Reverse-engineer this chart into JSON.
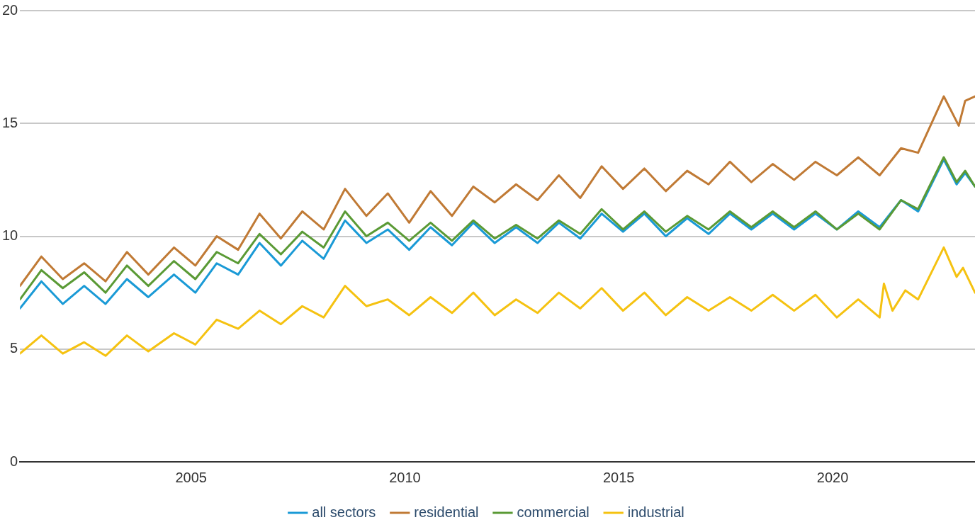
{
  "chart_data": {
    "type": "line",
    "xlim": [
      2001,
      2023.33
    ],
    "xticks": [
      2005,
      2010,
      2015,
      2020
    ],
    "ylim": [
      0,
      20
    ],
    "yticks": [
      0,
      5,
      10,
      15,
      20
    ],
    "grid": "y",
    "legend": "bottom",
    "marker": "none",
    "line_style": "solid",
    "series": [
      {
        "name": "all sectors",
        "color": "#1a9ad6",
        "x": [
          2001,
          2001.5,
          2002,
          2002.5,
          2003,
          2003.5,
          2004,
          2004.6,
          2005.1,
          2005.6,
          2006.1,
          2006.6,
          2007.1,
          2007.6,
          2008.1,
          2008.6,
          2009.1,
          2009.6,
          2010.1,
          2010.6,
          2011.1,
          2011.6,
          2012.1,
          2012.6,
          2013.1,
          2013.6,
          2014.1,
          2014.6,
          2015.1,
          2015.6,
          2016.1,
          2016.6,
          2017.1,
          2017.6,
          2018.1,
          2018.6,
          2019.1,
          2019.6,
          2020.1,
          2020.6,
          2021.1,
          2021.6,
          2022,
          2022.6,
          2022.9,
          2023.1,
          2023.33
        ],
        "values": [
          6.8,
          8.0,
          7.0,
          7.8,
          7.0,
          8.1,
          7.3,
          8.3,
          7.5,
          8.8,
          8.3,
          9.7,
          8.7,
          9.8,
          9.0,
          10.7,
          9.7,
          10.3,
          9.4,
          10.4,
          9.6,
          10.6,
          9.7,
          10.4,
          9.7,
          10.6,
          9.9,
          11.0,
          10.2,
          11.0,
          10.0,
          10.8,
          10.1,
          11.0,
          10.3,
          11.0,
          10.3,
          11.0,
          10.3,
          11.1,
          10.4,
          11.6,
          11.1,
          13.4,
          12.3,
          12.8,
          12.2
        ]
      },
      {
        "name": "residential",
        "color": "#c07a35",
        "x": [
          2001,
          2001.5,
          2002,
          2002.5,
          2003,
          2003.5,
          2004,
          2004.6,
          2005.1,
          2005.6,
          2006.1,
          2006.6,
          2007.1,
          2007.6,
          2008.1,
          2008.6,
          2009.1,
          2009.6,
          2010.1,
          2010.6,
          2011.1,
          2011.6,
          2012.1,
          2012.6,
          2013.1,
          2013.6,
          2014.1,
          2014.6,
          2015.1,
          2015.6,
          2016.1,
          2016.6,
          2017.1,
          2017.6,
          2018.1,
          2018.6,
          2019.1,
          2019.6,
          2020.1,
          2020.6,
          2021.1,
          2021.6,
          2022,
          2022.6,
          2022.95,
          2023.1,
          2023.33
        ],
        "values": [
          7.8,
          9.1,
          8.1,
          8.8,
          8.0,
          9.3,
          8.3,
          9.5,
          8.7,
          10.0,
          9.4,
          11.0,
          9.9,
          11.1,
          10.3,
          12.1,
          10.9,
          11.9,
          10.6,
          12.0,
          10.9,
          12.2,
          11.5,
          12.3,
          11.6,
          12.7,
          11.7,
          13.1,
          12.1,
          13.0,
          12.0,
          12.9,
          12.3,
          13.3,
          12.4,
          13.2,
          12.5,
          13.3,
          12.7,
          13.5,
          12.7,
          13.9,
          13.7,
          16.2,
          14.9,
          16.0,
          16.2
        ]
      },
      {
        "name": "commercial",
        "color": "#5a9a35",
        "x": [
          2001,
          2001.5,
          2002,
          2002.5,
          2003,
          2003.5,
          2004,
          2004.6,
          2005.1,
          2005.6,
          2006.1,
          2006.6,
          2007.1,
          2007.6,
          2008.1,
          2008.6,
          2009.1,
          2009.6,
          2010.1,
          2010.6,
          2011.1,
          2011.6,
          2012.1,
          2012.6,
          2013.1,
          2013.6,
          2014.1,
          2014.6,
          2015.1,
          2015.6,
          2016.1,
          2016.6,
          2017.1,
          2017.6,
          2018.1,
          2018.6,
          2019.1,
          2019.6,
          2020.1,
          2020.6,
          2021.1,
          2021.6,
          2022,
          2022.6,
          2022.9,
          2023.1,
          2023.33
        ],
        "values": [
          7.2,
          8.5,
          7.7,
          8.4,
          7.5,
          8.7,
          7.8,
          8.9,
          8.1,
          9.3,
          8.8,
          10.1,
          9.2,
          10.2,
          9.5,
          11.1,
          10.0,
          10.6,
          9.8,
          10.6,
          9.8,
          10.7,
          9.9,
          10.5,
          9.9,
          10.7,
          10.1,
          11.2,
          10.3,
          11.1,
          10.2,
          10.9,
          10.3,
          11.1,
          10.4,
          11.1,
          10.4,
          11.1,
          10.3,
          11.0,
          10.3,
          11.6,
          11.2,
          13.5,
          12.4,
          12.9,
          12.2
        ]
      },
      {
        "name": "industrial",
        "color": "#f5c211",
        "x": [
          2001,
          2001.5,
          2002,
          2002.5,
          2003,
          2003.5,
          2004,
          2004.6,
          2005.1,
          2005.6,
          2006.1,
          2006.6,
          2007.1,
          2007.6,
          2008.1,
          2008.6,
          2009.1,
          2009.6,
          2010.1,
          2010.6,
          2011.1,
          2011.6,
          2012.1,
          2012.6,
          2013.1,
          2013.6,
          2014.1,
          2014.6,
          2015.1,
          2015.6,
          2016.1,
          2016.6,
          2017.1,
          2017.6,
          2018.1,
          2018.6,
          2019.1,
          2019.6,
          2020.1,
          2020.6,
          2021.1,
          2021.2,
          2021.4,
          2021.7,
          2022,
          2022.6,
          2022.9,
          2023.05,
          2023.33
        ],
        "values": [
          4.8,
          5.6,
          4.8,
          5.3,
          4.7,
          5.6,
          4.9,
          5.7,
          5.2,
          6.3,
          5.9,
          6.7,
          6.1,
          6.9,
          6.4,
          7.8,
          6.9,
          7.2,
          6.5,
          7.3,
          6.6,
          7.5,
          6.5,
          7.2,
          6.6,
          7.5,
          6.8,
          7.7,
          6.7,
          7.5,
          6.5,
          7.3,
          6.7,
          7.3,
          6.7,
          7.4,
          6.7,
          7.4,
          6.4,
          7.2,
          6.4,
          7.9,
          6.7,
          7.6,
          7.2,
          9.5,
          8.2,
          8.6,
          7.5
        ]
      }
    ]
  }
}
